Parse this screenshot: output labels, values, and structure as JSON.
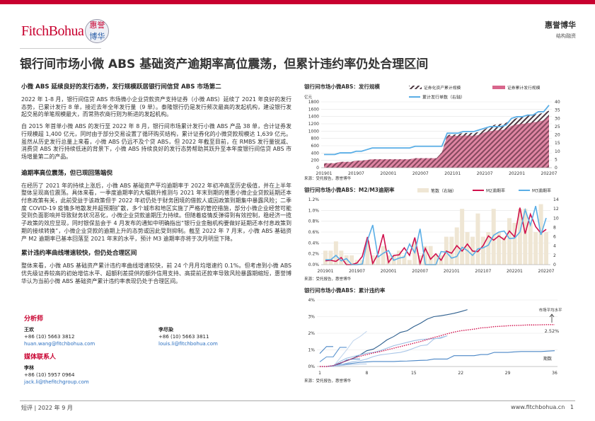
{
  "header": {
    "logo_text": "FitchBohua",
    "logo_seal": "惠誉博华",
    "brand_name": "惠誉博华",
    "brand_sub": "结构融资",
    "title": "银行间市场小微 ABS 基础资产逾期率高位震荡，但累计违约率仍处合理区间",
    "accent": "#c8002f"
  },
  "body": {
    "h1": "小微 ABS 延续良好的发行态势，发行规模跃居银行间信贷 ABS 市场第二",
    "p1": "2022 年 1-8 月，银行间信贷 ABS 市场微小企业贷款资产支持证券（小微 ABS）延续了 2021 年良好的发行态势，已累计发行 8 单，接近去年全年发行量（9 单）。泰隆银行仍是发行频次最高的发起机构，建设银行发起交易的单笔规模最大，而常熟农商行则为新进的发起机构。",
    "p2": "自 2015 年首单小微 ABS 的发行至 2022 年 8 月，银行间市场累计发行小微 ABS 产品 38 单，合计证券发行规模超 1,400 亿元，同时由于部分交易设置了循环购买结构，累计证券化的小微贷款规模达 1,639 亿元。虽然从历史发行总量上来看，小微 ABS 仍远不及个贷 ABS，但 2022 年截至目前，在 RMBS 发行量锐减、消费贷 ABS 发行持续低迷的背景下，小微 ABS 持续良好的发行态势帮助其跃升至本年度银行间信贷 ABS 市场增量第二的产品。",
    "h2": "逾期率高位震荡，但已现回落端倪",
    "p3": "在经历了 2021 年的持续上涨后，小微 ABS 基础资产平均逾期率于 2022 年初冲高至历史极值，并在上半年整体呈现高位震荡。具体来看，一季度逾期率的大幅跳升推测与 2021 年末到期的普惠小微企业贷款延期还本付息政策有关，此前受益于该政策但于 2022 年初仍处于财务困境的借款人或因政策到期集中暴露风险；二季度 COVID-19 疫情多地散发并超预期扩散，多个城市和地区实施了严格的管控措施，部分小微企业经营可能受到负面影响并导致财务状况恶化，小微企业贷款逾期压力持续。但随着疫情反弹得到有效控制，稳经济一揽子政策的效应显现，同时银保监会于 4 月发布的通知中明确指出“银行业金融机构要做好延期还本付息政策到期的接续转换”，小微企业贷款的逾期上升的态势或因此受到抑制。截至 2022 年 7 月末，小微 ABS 基础资产 M2 逾期率已基本回落至 2021 年末的水平，预计 M3 逾期率亦将于次月明显下降。",
    "h3": "累计违约率曲线增速较快，但仍处合理区间",
    "p4": "整体来看，小微 ABS 基础资产累计违约率曲线增速较快，前 24 个月月均增速约 0.1%。但考虑到小微 ABS 优先级证券较高的初始增信水平、超额利差提供的额外信用支持、高提前还款率导致风险暴露期缩短，惠誉博华认为当前小微 ABS 基础资产累计违约率表现仍处于合理区间。"
  },
  "contacts": {
    "analysts_label": "分析师",
    "analysts": [
      {
        "name": "王欢",
        "phone": "+86 (10) 5663 3812",
        "email": "huan.wang@fitchbohua.com"
      },
      {
        "name": "李尽染",
        "phone": "+86 (10) 5663 3811",
        "email": "louis.li@fitchbohua.com"
      }
    ],
    "media_label": "媒体联系人",
    "media": [
      {
        "name": "李林",
        "phone": "+86 (10) 5957 0964",
        "email": "jack.li@thefitchgroup.com"
      }
    ]
  },
  "footer": {
    "left": "短评 | 2022 年 9 月",
    "url": "www.fitchbohua.cn",
    "page": "1"
  },
  "chart_data": [
    {
      "type": "area",
      "title": "银行间市场小微ABS：发行规模",
      "ylabel": "亿元",
      "source": "来源：受托报告，惠誉博华",
      "ylim": [
        0,
        1800
      ],
      "y2lim": [
        0,
        40
      ],
      "yticks": [
        0,
        200,
        400,
        600,
        800,
        1000,
        1200,
        1400,
        1600,
        1800
      ],
      "y2ticks": [
        0,
        5,
        10,
        15,
        20,
        25,
        30,
        35,
        40
      ],
      "xlabels": [
        "201901",
        "201907",
        "202001",
        "202007",
        "202101",
        "202107",
        "202201",
        "202207"
      ],
      "series": [
        {
          "name": "证券化资产累计规模",
          "color": "#5a3a48",
          "values": [
            120,
            120,
            120,
            160,
            160,
            160,
            190,
            190,
            210,
            230,
            230,
            230,
            230,
            230,
            230,
            230,
            230,
            260,
            260,
            260,
            260,
            260,
            420,
            900,
            900,
            920,
            950,
            950,
            950,
            980,
            1050,
            1130,
            1180,
            1200,
            1230,
            1300,
            1360,
            1400,
            1420,
            1460,
            1470,
            1500,
            1560
          ]
        },
        {
          "name": "证券累计发行规模",
          "color": "#d8668c",
          "values": [
            120,
            120,
            120,
            160,
            160,
            160,
            190,
            190,
            210,
            230,
            230,
            230,
            230,
            230,
            230,
            230,
            230,
            260,
            260,
            260,
            260,
            260,
            420,
            870,
            870,
            870,
            880,
            880,
            870,
            900,
            970,
            1000,
            1020,
            1030,
            1050,
            1150,
            1180,
            1200,
            1220,
            1240,
            1260,
            1300,
            1420
          ]
        },
        {
          "name": "累计发行单数（右轴）",
          "color": "#5aaee6",
          "axis": "right",
          "values": [
            8,
            8,
            8,
            9,
            9,
            9,
            10,
            10,
            11,
            12,
            12,
            12,
            12,
            12,
            12,
            12,
            12,
            13,
            13,
            13,
            13,
            13,
            13,
            21,
            21,
            21,
            22,
            22,
            22,
            23,
            24,
            25,
            25,
            25,
            26,
            30,
            31,
            31,
            32,
            32,
            34,
            34,
            38
          ]
        }
      ]
    },
    {
      "type": "bar+line",
      "title": "银行间市场小微ABS：M2/M3逾期率",
      "source": "来源：受托报告，惠誉博华",
      "ylim": [
        0,
        1.2
      ],
      "y2lim": [
        0,
        14
      ],
      "yticks": [
        "0.0%",
        "0.2%",
        "0.4%",
        "0.6%",
        "0.8%",
        "1.0%",
        "1.2%"
      ],
      "y2ticks": [
        0,
        2,
        4,
        6,
        8,
        10,
        12,
        14
      ],
      "xlabels": [
        "201901",
        "201907",
        "202001",
        "202007",
        "202101",
        "202107",
        "202201",
        "202207"
      ],
      "series": [
        {
          "name": "笔数（右轴）",
          "type": "bar",
          "color": "#efe6d4",
          "axis": "right",
          "values": [
            3,
            3,
            5,
            3,
            2,
            2,
            1,
            1,
            5,
            2,
            2,
            4,
            2,
            2,
            3,
            2,
            1,
            5,
            2,
            4,
            4,
            2,
            2,
            6,
            6,
            8,
            12,
            7,
            6,
            11,
            6,
            7,
            12,
            7,
            6,
            10,
            9,
            12,
            12,
            9,
            7,
            13,
            7
          ]
        },
        {
          "name": "M2逾期率",
          "type": "line",
          "color": "#d0104c",
          "values": [
            0.07,
            0.08,
            0.06,
            0.13,
            0.0,
            0.0,
            0.03,
            0.15,
            0.51,
            0.02,
            0.2,
            0.56,
            0.04,
            0.17,
            0.18,
            0.31,
            0.17,
            0.5,
            0.02,
            0.3,
            0.1,
            0.2,
            0.08,
            0.25,
            0.21,
            0.35,
            0.25,
            0.38,
            0.25,
            0.24,
            0.35,
            0.53,
            0.45,
            0.53,
            0.46,
            0.62,
            0.51,
            1.05,
            0.57,
            0.93,
            0.7,
            0.58,
            0.65
          ]
        },
        {
          "name": "M3逾期率",
          "type": "line",
          "color": "#5aaee6",
          "values": [
            0.09,
            0.09,
            0.17,
            0.07,
            0.11,
            0.0,
            0.0,
            0.01,
            0.45,
            0.73,
            0.14,
            0.21,
            0.26,
            0.08,
            0.12,
            0.14,
            0.38,
            0.22,
            0.66,
            0.0,
            0.0,
            0.0,
            0.24,
            0.23,
            0.12,
            0.15,
            0.32,
            0.26,
            0.17,
            0.29,
            0.31,
            0.36,
            0.54,
            0.6,
            0.62,
            0.48,
            0.49,
            0.6,
            1.01,
            0.73,
            1.08,
            0.55,
            0.86
          ]
        }
      ]
    },
    {
      "type": "line",
      "title": "银行间市场小微ABS：累计违约率",
      "source": "来源：受托报告，惠誉博华",
      "xlabel": "期数",
      "ylim": [
        0,
        4
      ],
      "xlim": [
        1,
        36
      ],
      "yticks": [
        "0%",
        "1%",
        "2%",
        "3%",
        "4%"
      ],
      "xticks": [
        1,
        8,
        15,
        22,
        29,
        36
      ],
      "annotation": "市场平均水平",
      "avg_label": "2.52%",
      "series": [
        {
          "color": "#2e5f8e",
          "values": [
            0,
            0,
            0.05,
            0.2,
            0.35,
            0.5,
            0.7,
            0.95,
            1.05,
            1.3,
            1.6,
            1.8,
            2.05,
            2.15,
            2.4,
            2.6,
            2.85,
            3.0,
            3.05,
            3.12,
            3.2,
            3.3,
            3.42
          ]
        },
        {
          "color": "#4a86c6",
          "values": [
            0,
            0,
            0,
            0.1,
            0.15,
            0.2,
            0.25,
            0.28,
            0.3,
            0.3,
            0.3,
            0.3,
            0.32,
            0.33,
            0.35,
            0.37,
            0.38,
            0.45,
            0.45,
            0.45,
            0.65,
            0.65,
            0.65,
            0.65,
            0.72,
            0.72,
            0.85,
            0.85,
            0.85,
            0.88,
            0.9,
            0.9,
            0.9,
            0.9,
            0.93,
            0.95
          ]
        },
        {
          "color": "#4a86c6",
          "values": [
            0.78,
            1.2,
            1.2
          ]
        },
        {
          "color": "#5b95d0",
          "values": [
            0.28,
            0.58,
            0.58,
            1.15,
            1.15
          ]
        },
        {
          "color": "#c5d8ee",
          "values": [
            0,
            0,
            0,
            0.5,
            1.0,
            1.55,
            1.8,
            2.12
          ]
        },
        {
          "color": "#9dbde3",
          "values": [
            0,
            0,
            0.05,
            0.3,
            0.5,
            0.6,
            0.7,
            0.8,
            0.85,
            0.95,
            1.1,
            1.25,
            1.35,
            1.45,
            1.55,
            1.62,
            1.65,
            1.68,
            1.7,
            1.85
          ]
        },
        {
          "color": "#aac6e8",
          "values": [
            0,
            0,
            0,
            0.1,
            0.2,
            0.3,
            0.35,
            0.45,
            0.6,
            0.7,
            0.75,
            0.8,
            0.85,
            0.95,
            1.1,
            1.25,
            1.3,
            1.65,
            1.75,
            1.85
          ]
        },
        {
          "color": "#5b95d0",
          "values": [
            0,
            0,
            0.05,
            0.15,
            0.4,
            0.45,
            0.45
          ]
        },
        {
          "color": "#b5cce8",
          "values": [
            0,
            0,
            0,
            0.05,
            0.1,
            0.12,
            0.15,
            0.15
          ]
        },
        {
          "name": "市场平均水平",
          "color": "#d0104c",
          "dashed": true,
          "values": [
            0,
            0,
            0.05,
            0.2,
            0.35,
            0.5,
            0.62,
            0.72,
            0.82,
            0.9,
            1.0,
            1.1,
            1.2,
            1.3,
            1.4,
            1.5,
            1.62,
            1.75,
            1.85,
            1.97,
            2.07,
            2.15,
            2.2,
            2.25,
            2.32,
            2.35,
            2.4,
            2.42,
            2.45,
            2.47,
            2.48,
            2.5,
            2.5,
            2.51,
            2.52,
            2.52
          ]
        }
      ]
    }
  ]
}
